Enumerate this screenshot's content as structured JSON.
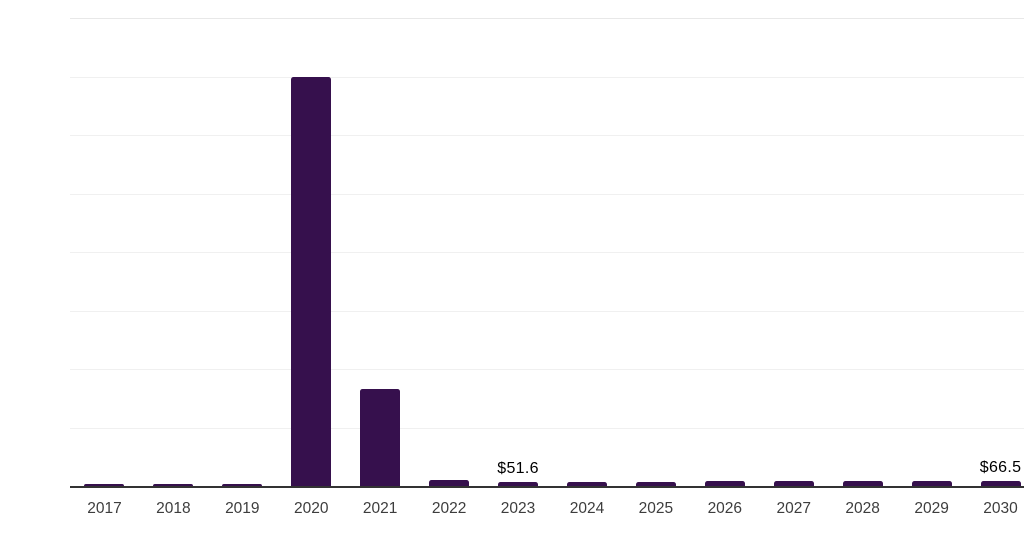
{
  "chart_data": {
    "type": "bar",
    "title": "",
    "xlabel": "",
    "ylabel": "",
    "categories": [
      "2017",
      "2018",
      "2019",
      "2020",
      "2021",
      "2022",
      "2023",
      "2024",
      "2025",
      "2026",
      "2027",
      "2028",
      "2029",
      "2030"
    ],
    "values": [
      30,
      30,
      30,
      5250,
      1250,
      78,
      51.6,
      53.7,
      55.9,
      58,
      60.1,
      62.3,
      64.4,
      66.5
    ],
    "value_labels": {
      "2023": "$51.6",
      "2030": "$66.5"
    },
    "ylim": [
      0,
      6000
    ],
    "gridline_step": 750,
    "grid": true,
    "legend": false,
    "yaxis_tick_labels": false,
    "colors": {
      "bar": "#36104D",
      "gridline": "#f0f0f0",
      "top_gridline": "#e8e8e8",
      "axis_line": "#333333",
      "x_tick_label": "#3d3d3d",
      "value_label": "#000000",
      "background": "#ffffff"
    }
  }
}
